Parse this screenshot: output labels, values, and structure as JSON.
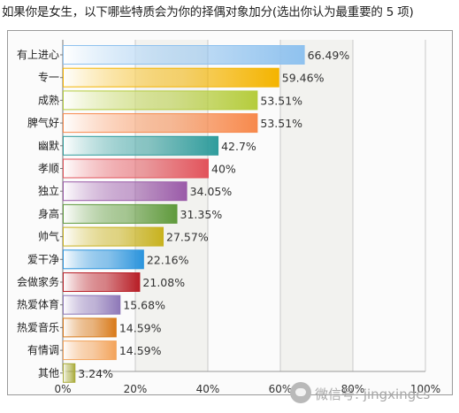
{
  "question": "如果你是女生，以下哪些特质会为你的择偶对象加分(选出你认为最重要的 5 项)",
  "watermark": {
    "text": "微信号: jingxingcs",
    "icon": "wechat-icon"
  },
  "chart_data": {
    "type": "bar",
    "orientation": "horizontal",
    "categories": [
      "有上进心",
      "专一",
      "成熟",
      "脾气好",
      "幽默",
      "孝顺",
      "独立",
      "身高",
      "帅气",
      "爱干净",
      "会做家务",
      "热爱体育",
      "热爱音乐",
      "有情调",
      "其他"
    ],
    "values": [
      66.49,
      59.46,
      53.51,
      53.51,
      42.7,
      40,
      34.05,
      31.35,
      27.57,
      22.16,
      21.08,
      15.68,
      14.59,
      14.59,
      3.24
    ],
    "value_labels": [
      "66.49%",
      "59.46%",
      "53.51%",
      "53.51%",
      "42.7%",
      "40%",
      "34.05%",
      "31.35%",
      "27.57%",
      "22.16%",
      "21.08%",
      "15.68%",
      "14.59%",
      "14.59%",
      "3.24%"
    ],
    "colors": [
      "#8fc2ef",
      "#f4b400",
      "#b5cc3c",
      "#f7894c",
      "#2f9c9c",
      "#e2535b",
      "#9a5aa8",
      "#5f9a3c",
      "#c8b21e",
      "#2b94dd",
      "#b81e26",
      "#8e78b8",
      "#d97a1a",
      "#f3a35a",
      "#a9ab3a"
    ],
    "x_ticks": [
      "0%",
      "20%",
      "40%",
      "60%",
      "80%",
      "100%"
    ],
    "xlim": [
      0,
      100
    ],
    "grid": true,
    "title": "",
    "xlabel": "",
    "ylabel": ""
  }
}
